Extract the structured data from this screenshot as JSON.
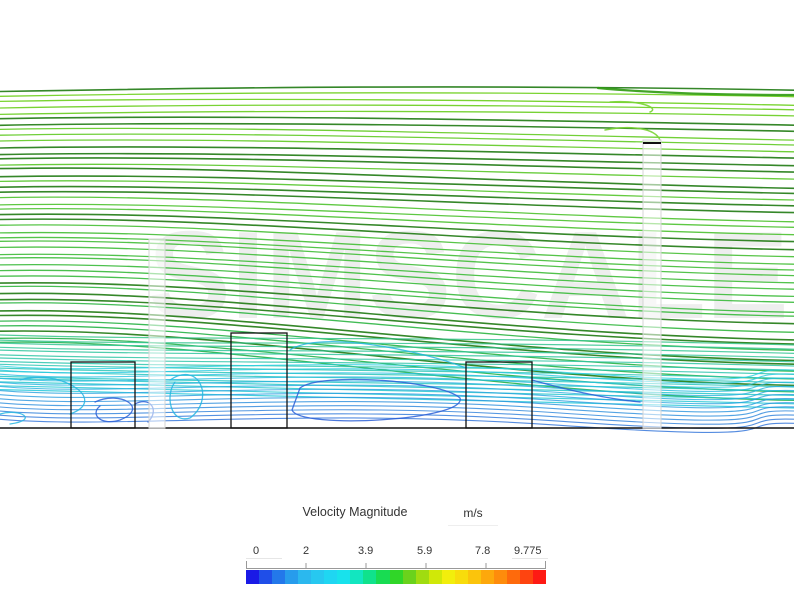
{
  "legend": {
    "title": "Velocity Magnitude",
    "unit": "m/s",
    "ticks": [
      "0",
      "2",
      "3.9",
      "5.9",
      "7.8",
      "9.775"
    ],
    "colors": [
      "#1a1ae6",
      "#1f4ee8",
      "#2378ea",
      "#279cec",
      "#2bb8ee",
      "#27c8f0",
      "#1fd6f2",
      "#18e2ec",
      "#12e6c0",
      "#10e28c",
      "#18dc52",
      "#30d628",
      "#6ad21c",
      "#a0dc10",
      "#d0e808",
      "#f2ee0c",
      "#f8dc0c",
      "#fbc40c",
      "#fda80c",
      "#fe8c0c",
      "#fe6a0c",
      "#fe4410",
      "#fe1a14"
    ]
  },
  "scene": {
    "watermark": "SIMSCALE",
    "accent_green": "#3fbf1a",
    "accent_cyan": "#25c8d8",
    "accent_blue": "#1a3fcf"
  }
}
